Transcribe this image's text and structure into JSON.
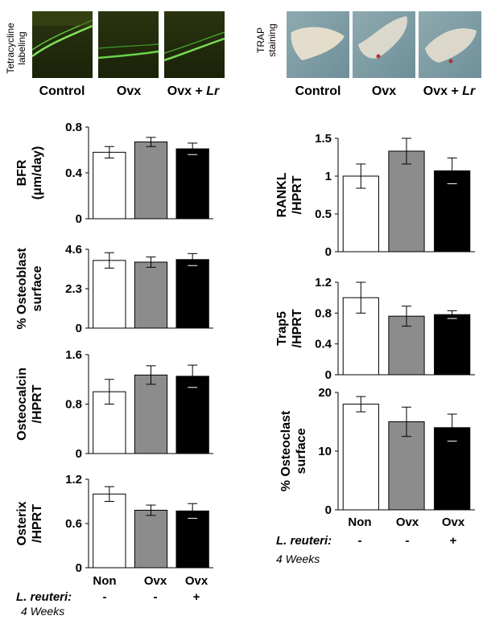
{
  "micrographs": {
    "tetracycline": {
      "label_line1": "Tetracycline",
      "label_line2": "labeling",
      "captions": [
        "Control",
        "Ovx",
        "Ovx + Lr"
      ]
    },
    "trap": {
      "label_line1": "TRAP",
      "label_line2": "staining",
      "captions": [
        "Control",
        "Ovx",
        "Ovx + Lr"
      ]
    }
  },
  "colors": {
    "Non": "#ffffff",
    "Ovx": "#8c8c8c",
    "OvxLr": "#000000"
  },
  "chart_data": [
    {
      "type": "bar",
      "id": "bfr",
      "ylabel_lines": [
        "BFR",
        "(μm/day)"
      ],
      "categories": [
        "Non",
        "Ovx",
        "Ovx"
      ],
      "values": [
        0.58,
        0.67,
        0.61
      ],
      "errors": [
        0.05,
        0.04,
        0.05
      ],
      "ylim": [
        0,
        0.8
      ],
      "ticks": [
        "0",
        "0.4",
        "0.8"
      ],
      "tick_values": [
        0,
        0.4,
        0.8
      ]
    },
    {
      "type": "bar",
      "id": "osteoblast",
      "ylabel_lines": [
        "% Osteoblast",
        "surface"
      ],
      "categories": [
        "Non",
        "Ovx",
        "Ovx"
      ],
      "values": [
        3.95,
        3.85,
        4.0
      ],
      "errors": [
        0.45,
        0.3,
        0.35
      ],
      "ylim": [
        0,
        4.6
      ],
      "ticks": [
        "0",
        "2.3",
        "4.6"
      ],
      "tick_values": [
        0,
        2.3,
        4.6
      ]
    },
    {
      "type": "bar",
      "id": "osteocalcin",
      "ylabel_lines": [
        "Osteocalcin",
        "/HPRT"
      ],
      "categories": [
        "Non",
        "Ovx",
        "Ovx"
      ],
      "values": [
        1.0,
        1.27,
        1.25
      ],
      "errors": [
        0.2,
        0.15,
        0.18
      ],
      "ylim": [
        0,
        1.6
      ],
      "ticks": [
        "0",
        "0.8",
        "1.6"
      ],
      "tick_values": [
        0,
        0.8,
        1.6
      ]
    },
    {
      "type": "bar",
      "id": "osterix",
      "ylabel_lines": [
        "Osterix",
        "/HPRT"
      ],
      "categories": [
        "Non",
        "Ovx",
        "Ovx"
      ],
      "values": [
        1.0,
        0.78,
        0.77
      ],
      "errors": [
        0.1,
        0.07,
        0.1
      ],
      "ylim": [
        0,
        1.2
      ],
      "ticks": [
        "0",
        "0.6",
        "1.2"
      ],
      "tick_values": [
        0,
        0.6,
        1.2
      ]
    },
    {
      "type": "bar",
      "id": "rankl",
      "ylabel_lines": [
        "RANKL",
        "/HPRT"
      ],
      "categories": [
        "Non",
        "Ovx",
        "Ovx"
      ],
      "values": [
        1.0,
        1.33,
        1.07
      ],
      "errors": [
        0.16,
        0.17,
        0.17
      ],
      "ylim": [
        0,
        1.5
      ],
      "ticks": [
        "0",
        "0.5",
        "1",
        "1.5"
      ],
      "tick_values": [
        0,
        0.5,
        1,
        1.5
      ]
    },
    {
      "type": "bar",
      "id": "trap5",
      "ylabel_lines": [
        "Trap5",
        "/HPRT"
      ],
      "categories": [
        "Non",
        "Ovx",
        "Ovx"
      ],
      "values": [
        1.0,
        0.76,
        0.78
      ],
      "errors": [
        0.2,
        0.13,
        0.05
      ],
      "ylim": [
        0,
        1.2
      ],
      "ticks": [
        "0",
        "0.4",
        "0.8",
        "1.2"
      ],
      "tick_values": [
        0,
        0.4,
        0.8,
        1.2
      ]
    },
    {
      "type": "bar",
      "id": "osteoclast",
      "ylabel_lines": [
        "% Osteoclast",
        "surface"
      ],
      "categories": [
        "Non",
        "Ovx",
        "Ovx"
      ],
      "values": [
        18.0,
        15.0,
        14.0
      ],
      "errors": [
        1.3,
        2.5,
        2.3
      ],
      "ylim": [
        0,
        20
      ],
      "ticks": [
        "0",
        "10",
        "20"
      ],
      "tick_values": [
        0,
        10,
        20
      ]
    }
  ],
  "treatment_left": {
    "categories": [
      "Non",
      "Ovx",
      "Ovx"
    ],
    "label": "L. reuteri:",
    "signs": [
      "-",
      "-",
      "+"
    ],
    "duration": "4 Weeks"
  },
  "treatment_right": {
    "categories": [
      "Non",
      "Ovx",
      "Ovx"
    ],
    "label": "L. reuteri:",
    "signs": [
      "-",
      "-",
      "+"
    ],
    "duration": "4 Weeks"
  }
}
